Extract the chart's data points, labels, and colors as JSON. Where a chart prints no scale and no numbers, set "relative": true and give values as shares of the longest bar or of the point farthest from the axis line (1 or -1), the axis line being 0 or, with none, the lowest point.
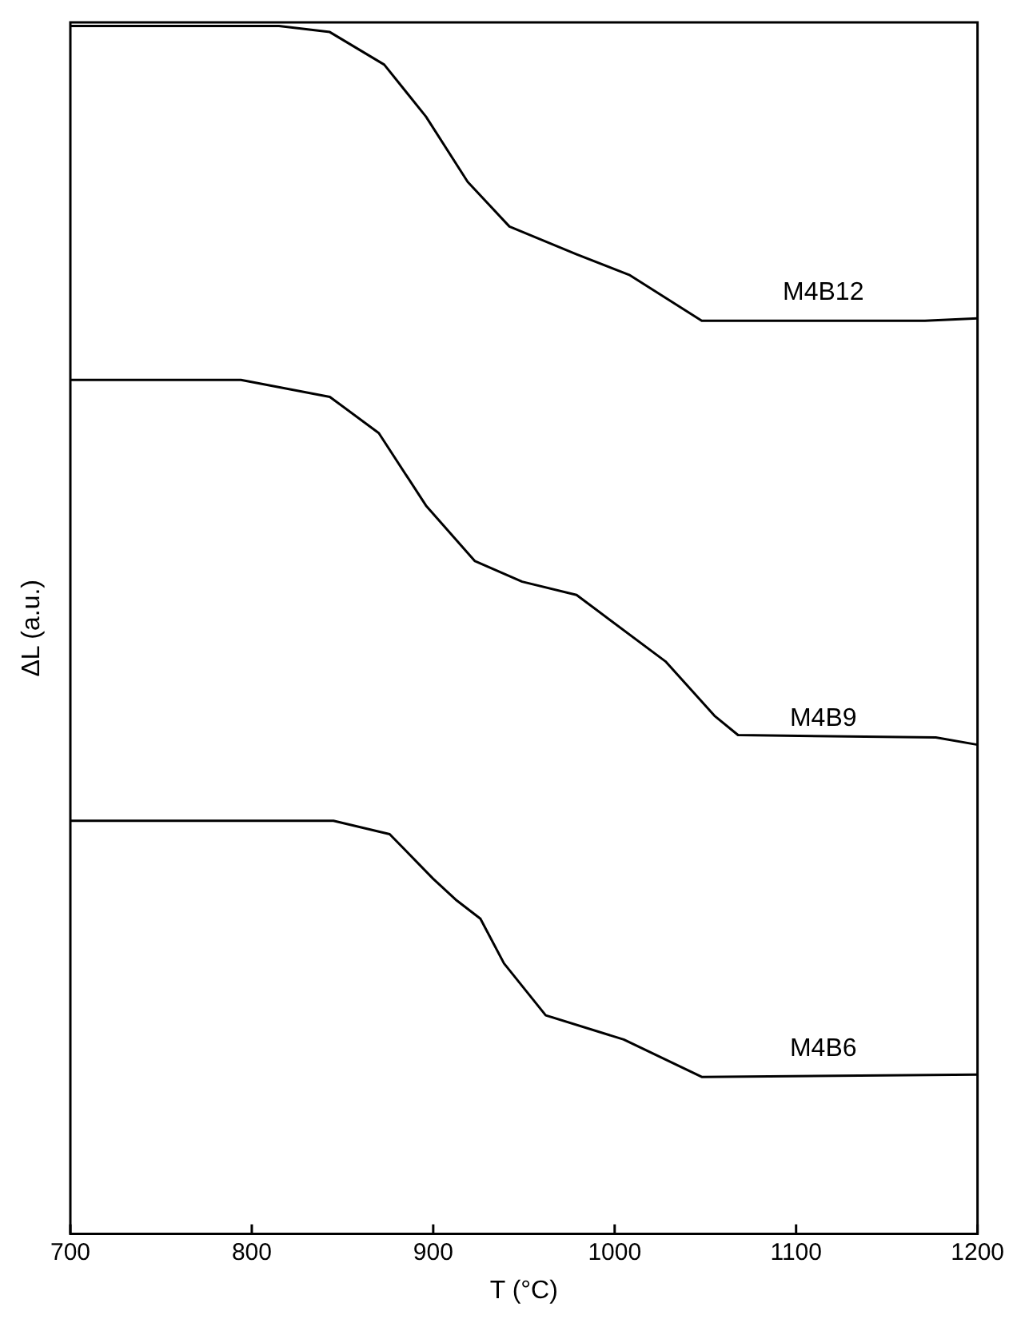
{
  "chart_data": {
    "type": "line",
    "xlabel": "T (°C)",
    "ylabel": "ΔL (a.u.)",
    "relative": true,
    "xlim": [
      700,
      1200
    ],
    "xticks": [
      700,
      800,
      900,
      1000,
      1100,
      1200
    ],
    "grid": false,
    "legend": false,
    "marker": "none",
    "line_style": "solid",
    "series": [
      {
        "name": "M4B12",
        "color": "#000000",
        "x": [
          700,
          815,
          843,
          873,
          896,
          919,
          942,
          979,
          1008,
          1048,
          1171,
          1200
        ],
        "values": [
          1.0,
          1.0,
          0.995,
          0.968,
          0.925,
          0.871,
          0.834,
          0.811,
          0.794,
          0.756,
          0.756,
          0.758
        ]
      },
      {
        "name": "M4B9",
        "color": "#000000",
        "x": [
          700,
          794,
          843,
          870,
          896,
          923,
          949,
          979,
          1028,
          1055,
          1068,
          1177,
          1200
        ],
        "values": [
          0.707,
          0.707,
          0.693,
          0.663,
          0.603,
          0.557,
          0.54,
          0.529,
          0.474,
          0.429,
          0.413,
          0.411,
          0.405
        ]
      },
      {
        "name": "M4B6",
        "color": "#000000",
        "x": [
          700,
          845,
          876,
          900,
          913,
          926,
          939,
          962,
          1005,
          1048,
          1200
        ],
        "values": [
          0.342,
          0.342,
          0.331,
          0.294,
          0.276,
          0.261,
          0.224,
          0.181,
          0.161,
          0.13,
          0.132
        ]
      }
    ]
  }
}
